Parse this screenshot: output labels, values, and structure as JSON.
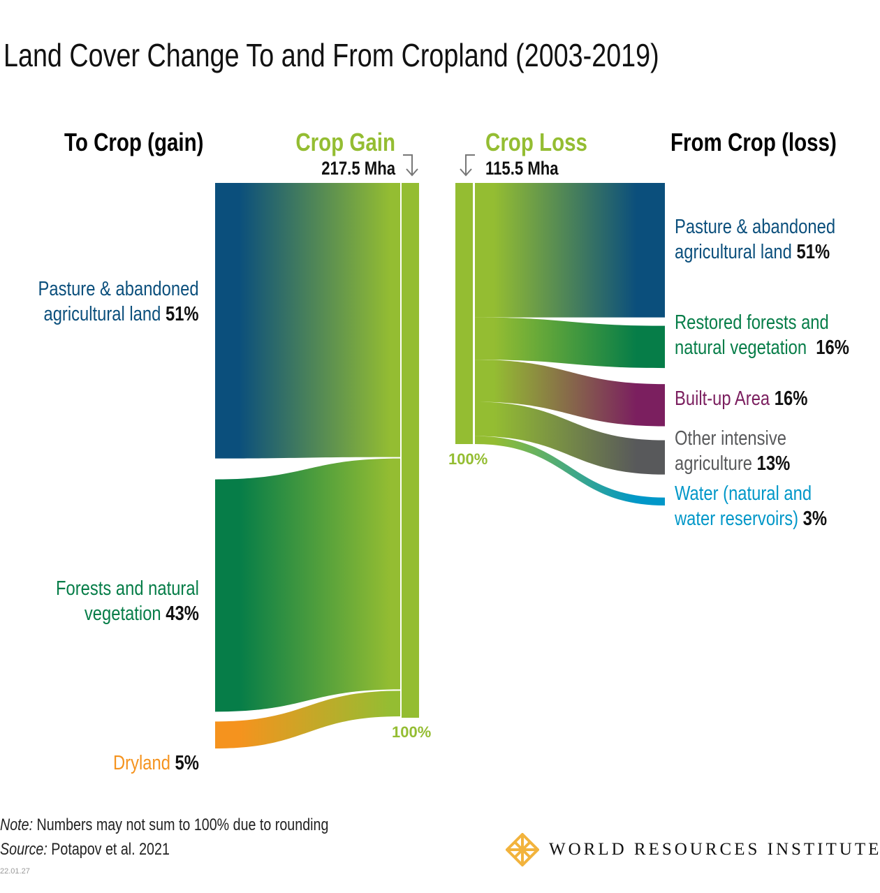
{
  "chart_data": {
    "type": "sankey",
    "title": "Land Cover Change To and From Cropland (2003-2019)",
    "left_header": "To Crop (gain)",
    "gain": {
      "label": "Crop Gain",
      "total": "217.5 Mha",
      "node_percent": "100%",
      "color": "#94bd32",
      "sources": [
        {
          "name": "Pasture & abandoned agricultural land",
          "line1": "Pasture & abandoned",
          "line2": "agricultural land",
          "percent": 51,
          "percent_label": "51%",
          "color": "#0b4f7c"
        },
        {
          "name": "Forests and natural vegetation",
          "line1": "Forests and natural",
          "line2": "vegetation",
          "percent": 43,
          "percent_label": "43%",
          "color": "#067d48"
        },
        {
          "name": "Dryland",
          "line1": "Dryland",
          "line2": "",
          "percent": 5,
          "percent_label": "5%",
          "color": "#f5931e"
        }
      ]
    },
    "right_header": "From Crop (loss)",
    "loss": {
      "label": "Crop Loss",
      "total": "115.5 Mha",
      "node_percent": "100%",
      "color": "#94bd32",
      "targets": [
        {
          "name": "Pasture & abandoned agricultural land",
          "line1": "Pasture & abandoned",
          "line2": "agricultural land",
          "percent": 51,
          "percent_label": "51%",
          "color": "#0b4f7c"
        },
        {
          "name": "Restored forests and natural vegetation",
          "line1": "Restored forests and",
          "line2": "natural vegetation",
          "percent": 16,
          "percent_label": "16%",
          "color": "#067d48"
        },
        {
          "name": "Built-up Area",
          "line1": "Built-up Area",
          "line2": "",
          "percent": 16,
          "percent_label": "16%",
          "color": "#7b1f5f"
        },
        {
          "name": "Other intensive agriculture",
          "line1": "Other intensive",
          "line2": "agriculture",
          "percent": 13,
          "percent_label": "13%",
          "color": "#58595b"
        },
        {
          "name": "Water (natural and water reservoirs)",
          "line1": "Water (natural and",
          "line2": "water reservoirs)",
          "percent": 3,
          "percent_label": "3%",
          "color": "#0097c8"
        }
      ]
    }
  },
  "footer": {
    "note_label": "Note:",
    "note_text": "Numbers may not sum to 100% due to rounding",
    "source_label": "Source:",
    "source_text": "Potapov et al. 2021",
    "date": "22.01.27",
    "logo_text": "WORLD RESOURCES INSTITUTE",
    "logo_color": "#f2b33d"
  }
}
